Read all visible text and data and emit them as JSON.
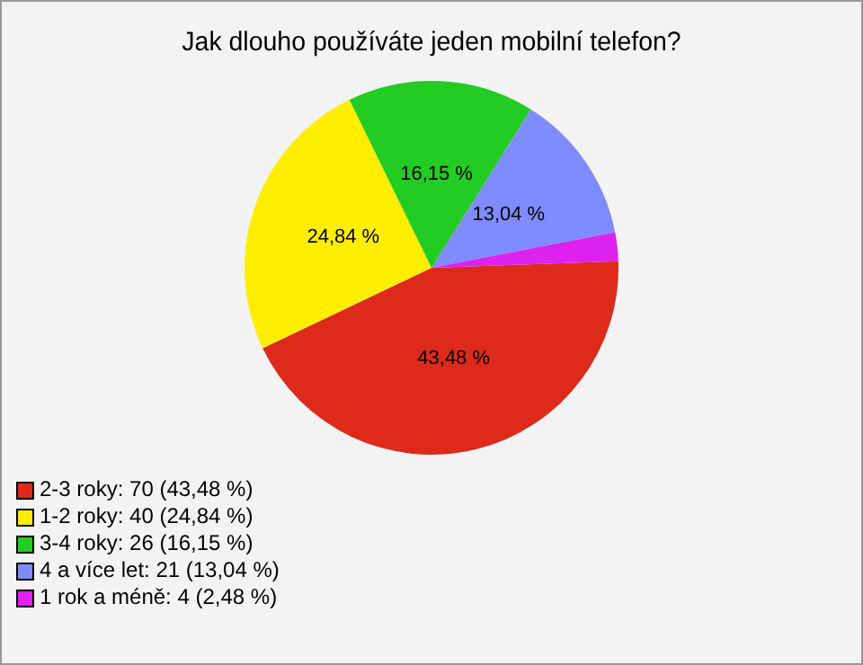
{
  "chart_data": {
    "type": "pie",
    "title": "Jak dlouho používáte jeden mobilní telefon?",
    "categories": [
      "2-3 roky: 70 (43,48 %)",
      "1-2 roky: 40 (24,84 %)",
      "3-4 roky: 26 (16,15 %)",
      "4 a více let: 21 (13,04 %)",
      "1 rok a méně: 4 (2,48 %)"
    ],
    "values": [
      43.48,
      24.84,
      16.15,
      13.04,
      2.48
    ],
    "colors": [
      "#dd2a1a",
      "#ffee00",
      "#22cc22",
      "#7f8cff",
      "#dd22ee"
    ],
    "value_labels": [
      "43,48 %",
      "24,84 %",
      "16,15 %",
      "13,04 %",
      null
    ],
    "legend": "bottom left"
  }
}
